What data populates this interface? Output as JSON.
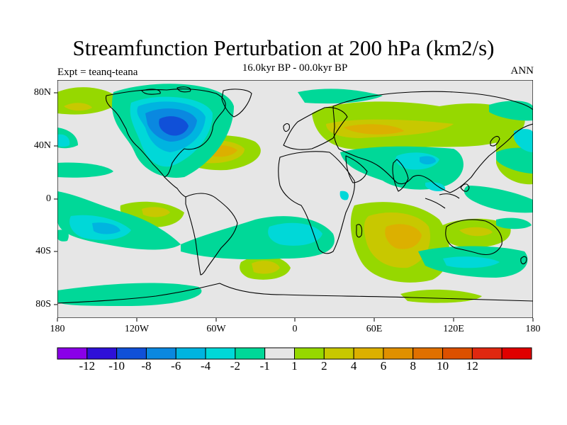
{
  "title": "Streamfunction Perturbation at 200 hPa (km2/s)",
  "subtitle": "16.0kyr BP - 00.0kyr BP",
  "left_label": "Expt = teanq-teana",
  "right_label": "ANN",
  "axes": {
    "y_ticks": [
      "80N",
      "40N",
      "0",
      "40S",
      "80S"
    ],
    "x_ticks": [
      "180",
      "120W",
      "60W",
      "0",
      "60E",
      "120E",
      "180"
    ],
    "lat_range": [
      -90,
      90
    ],
    "lon_range": [
      -180,
      180
    ]
  },
  "colorbar": {
    "colors": [
      "#8a00e8",
      "#2e10d8",
      "#1050d8",
      "#0a88e0",
      "#00b4e0",
      "#00d8d8",
      "#00d898",
      "#e6e6e6",
      "#96d800",
      "#c8c800",
      "#dcb000",
      "#e09000",
      "#e07000",
      "#dc5000",
      "#e02810",
      "#e00000"
    ],
    "labels": [
      "-12",
      "-10",
      "-8",
      "-6",
      "-4",
      "-2",
      "-1",
      "1",
      "2",
      "4",
      "6",
      "8",
      "10",
      "12"
    ]
  },
  "regions_note_colors": {
    "background_level": "#e6e6e6"
  }
}
